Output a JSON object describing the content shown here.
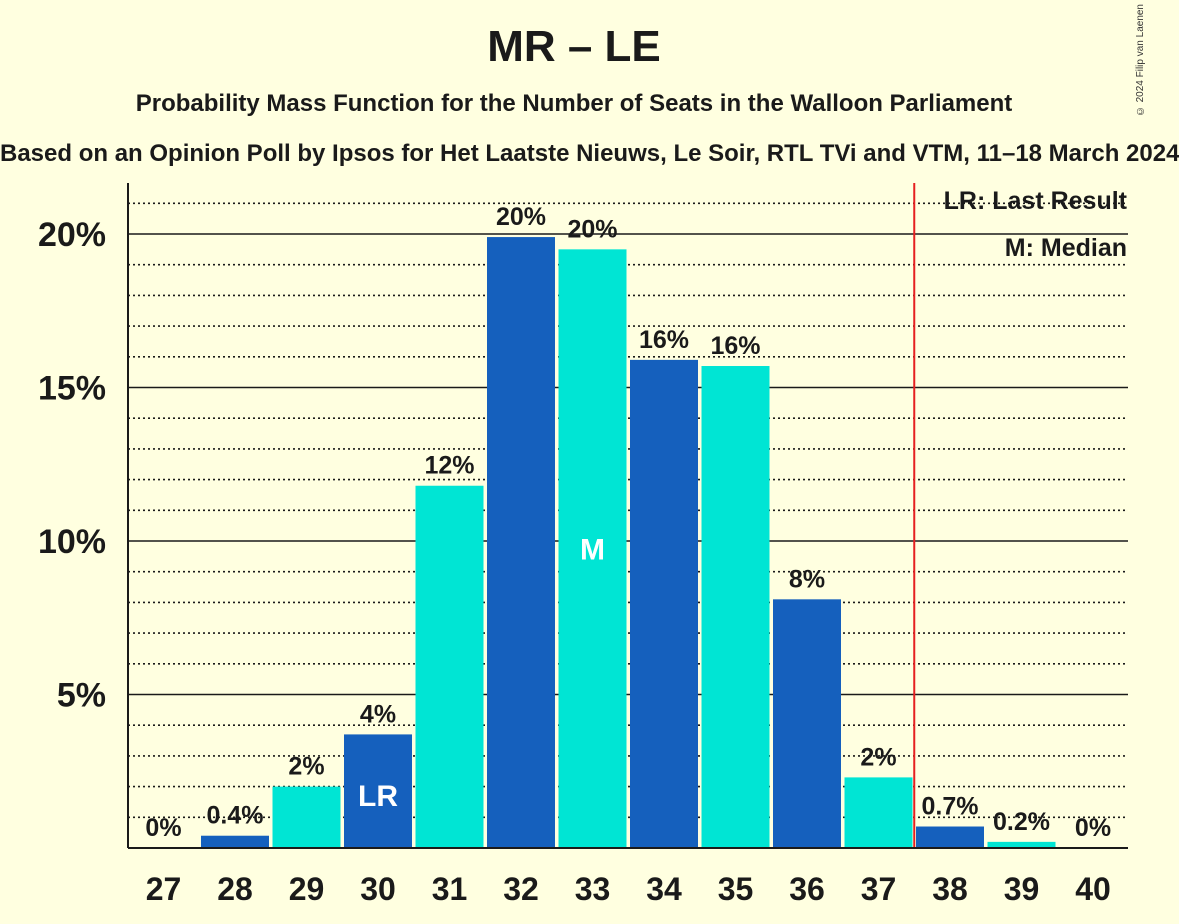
{
  "title": "MR – LE",
  "subtitle": "Probability Mass Function for the Number of Seats in the Walloon Parliament",
  "source": "Based on an Opinion Poll by Ipsos for Het Laatste Nieuws, Le Soir, RTL TVi and VTM, 11–18 March 2024",
  "copyright": "© 2024 Filip van Laenen",
  "colors": {
    "background": "#ffffe0",
    "bar_dark": "#1560bd",
    "bar_light": "#00e5d4",
    "last_result_line": "#e52020"
  },
  "legend": {
    "last_result": "LR: Last Result",
    "median": "M: Median"
  },
  "chart_data": {
    "type": "bar",
    "categories": [
      "27",
      "28",
      "29",
      "30",
      "31",
      "32",
      "33",
      "34",
      "35",
      "36",
      "37",
      "38",
      "39",
      "40"
    ],
    "values": [
      0,
      0.4,
      2.0,
      3.7,
      11.8,
      19.9,
      19.5,
      15.9,
      15.7,
      8.1,
      2.3,
      0.7,
      0.2,
      0
    ],
    "data_labels": [
      "0%",
      "0.4%",
      "2%",
      "4%",
      "12%",
      "20%",
      "20%",
      "16%",
      "16%",
      "8%",
      "2%",
      "0.7%",
      "0.2%",
      "0%"
    ],
    "bar_marks": {
      "30": "LR",
      "33": "M"
    },
    "last_result_seat": 30,
    "last_result_line_after": "37",
    "median_seat": 33,
    "y_ticks": [
      5,
      10,
      15,
      20
    ],
    "y_tick_labels": [
      "5%",
      "10%",
      "15%",
      "20%"
    ],
    "ylim": [
      0,
      21.7
    ],
    "grid": true
  }
}
